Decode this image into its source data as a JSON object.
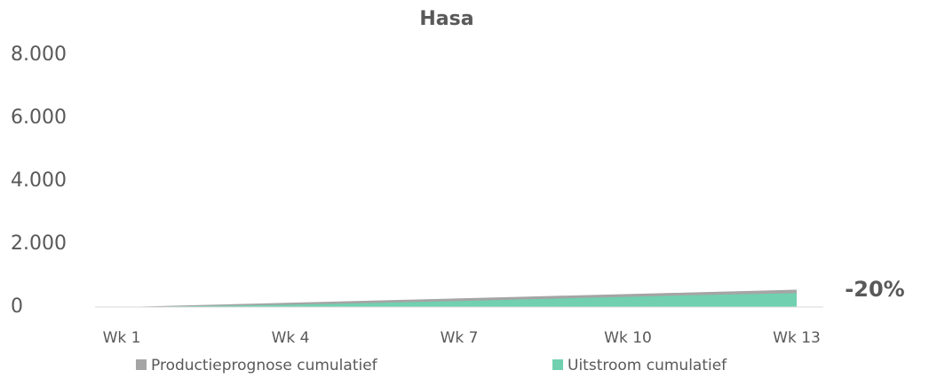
{
  "chart_data": {
    "type": "area",
    "title": "Hasa",
    "categories": [
      "Wk 1",
      null,
      null,
      "Wk 4",
      null,
      null,
      "Wk 7",
      null,
      null,
      "Wk 10",
      null,
      null,
      "Wk 13"
    ],
    "series": [
      {
        "name": "Productieprognose cumulatief",
        "color": "#a5a5a5",
        "values": [
          0,
          46,
          92,
          138,
          183,
          229,
          275,
          321,
          367,
          413,
          458,
          504,
          550
        ]
      },
      {
        "name": "Uitstroom cumulatief",
        "color": "#70d0b0",
        "values": [
          0,
          20,
          45,
          75,
          110,
          150,
          190,
          235,
          280,
          325,
          370,
          405,
          440
        ]
      }
    ],
    "ylim": [
      0,
      8000
    ],
    "yticks": [
      0,
      {
        "value": 2000,
        "label": "2.000"
      },
      {
        "value": 4000,
        "label": "4.000"
      },
      {
        "value": 6000,
        "label": "6.000"
      },
      {
        "value": 8000,
        "label": "8.000"
      }
    ],
    "grid": false,
    "legend": "bottom",
    "annotations": [
      "-20%"
    ]
  }
}
